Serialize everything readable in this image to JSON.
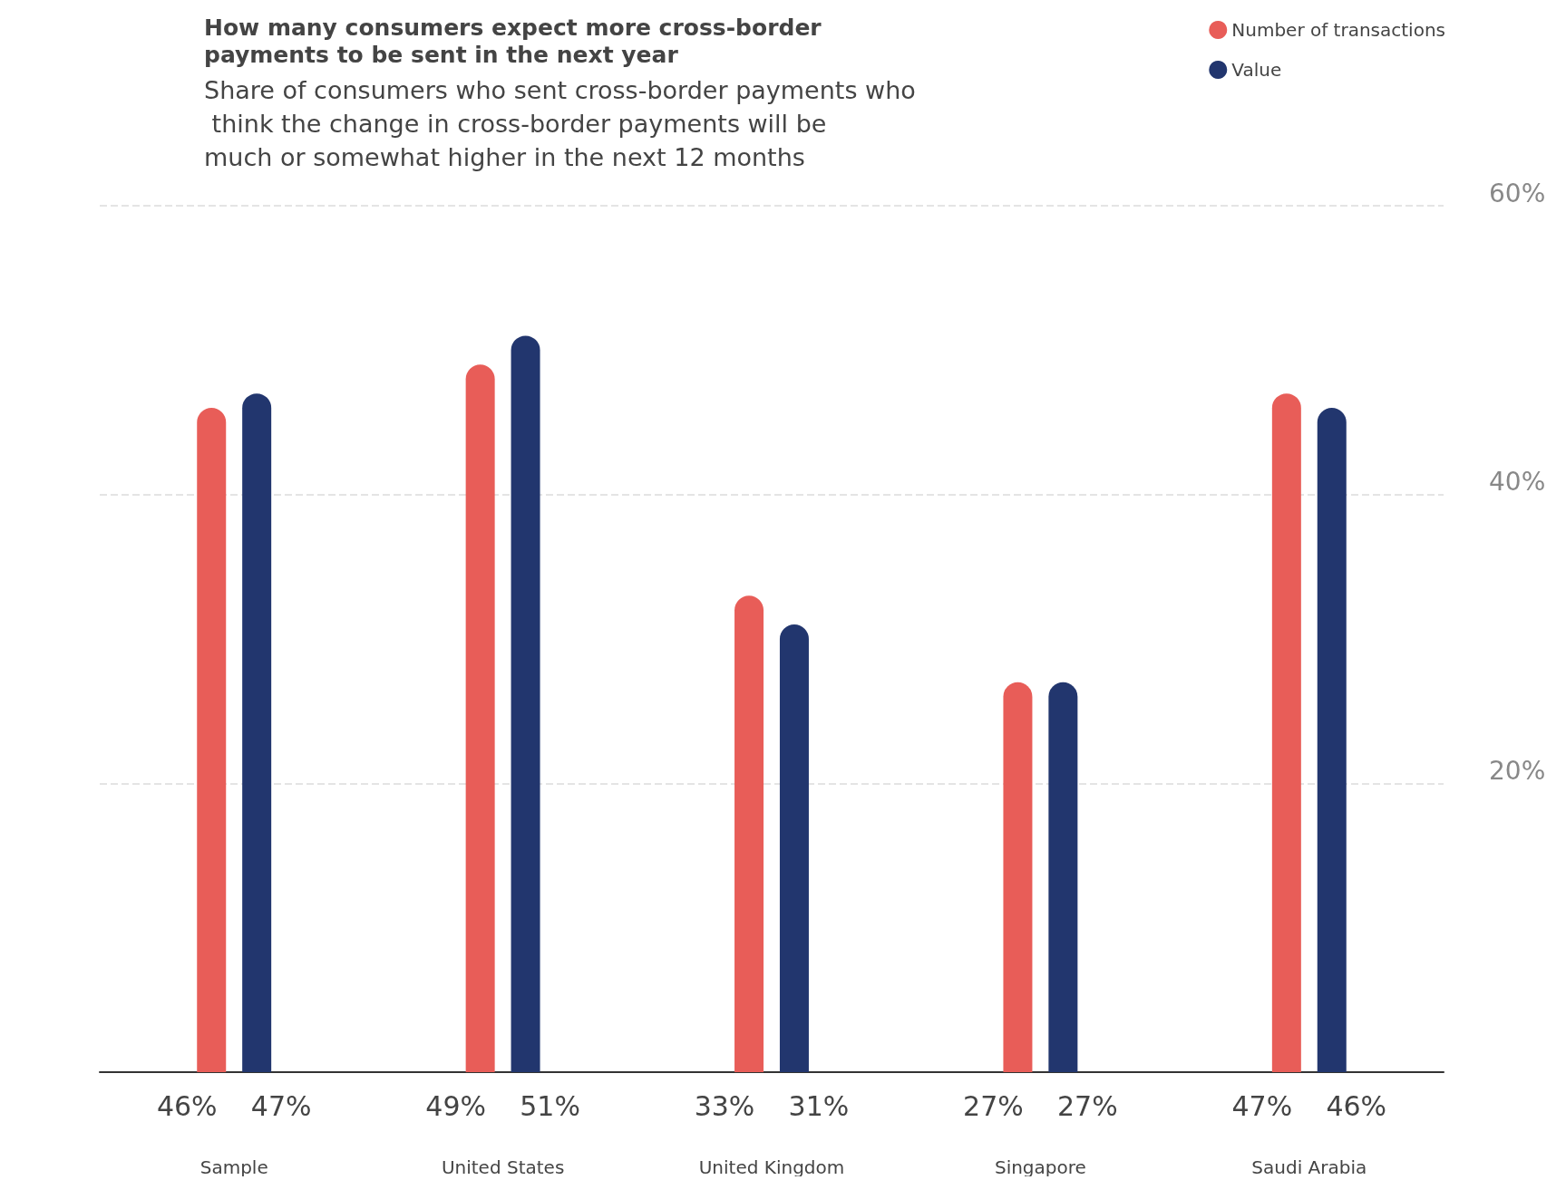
{
  "chart_data": {
    "type": "bar",
    "title": "How many consumers expect more cross-border payments to be sent in the next year",
    "subtitle": "Share of consumers who sent cross-border payments who think the change in cross-border payments will be much or somewhat higher in the next 12 months",
    "categories": [
      "Sample",
      "United States",
      "United Kingdom",
      "Singapore",
      "Saudi Arabia"
    ],
    "series": [
      {
        "name": "Number of transactions",
        "color": "#e85d58",
        "values": [
          46,
          49,
          33,
          27,
          47
        ],
        "value_labels": [
          "46%",
          "49%",
          "33%",
          "27%",
          "47%"
        ]
      },
      {
        "name": "Value",
        "color": "#22366e",
        "values": [
          47,
          51,
          31,
          27,
          46
        ],
        "value_labels": [
          "47%",
          "51%",
          "31%",
          "27%",
          "46%"
        ]
      }
    ],
    "ylim": [
      0,
      60
    ],
    "yticks": [
      {
        "value": 0,
        "label": null
      },
      {
        "value": 20,
        "label": "20%"
      },
      {
        "value": 40,
        "label": "40%"
      },
      {
        "value": 60,
        "label": "60%"
      }
    ],
    "grid": "y",
    "legend": "top right"
  }
}
